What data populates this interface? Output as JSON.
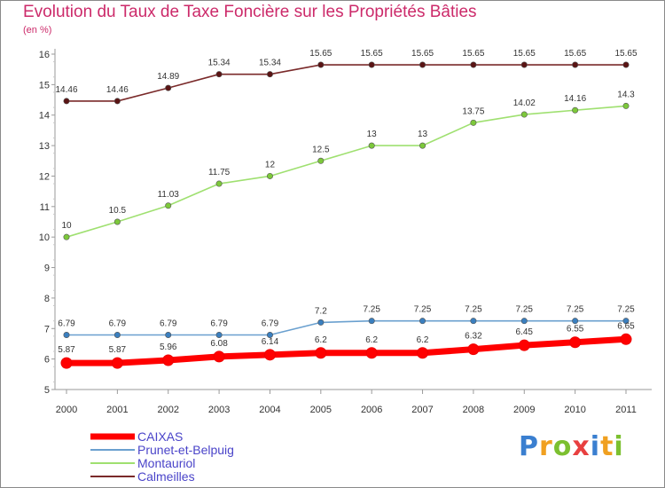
{
  "title": "Evolution du Taux de Taxe Foncière sur les Propriétés Bâties",
  "unit_label": "(en %)",
  "brand": {
    "letters": [
      {
        "char": "P",
        "color": "#3a7fd0"
      },
      {
        "char": "r",
        "color": "#f0a020"
      },
      {
        "char": "o",
        "color": "#7cc030"
      },
      {
        "char": "x",
        "color": "#e84040"
      },
      {
        "char": "i",
        "color": "#3a7fd0"
      },
      {
        "char": "t",
        "color": "#f0a020"
      },
      {
        "char": "i",
        "color": "#7cc030"
      }
    ]
  },
  "chart_data": {
    "type": "line",
    "title": "Evolution du Taux de Taxe Foncière sur les Propriétés Bâties",
    "ylabel": "(en %)",
    "xlabel": "",
    "x": [
      2000,
      2001,
      2002,
      2003,
      2004,
      2005,
      2006,
      2007,
      2008,
      2009,
      2010,
      2011
    ],
    "ylim": [
      5,
      16
    ],
    "yticks": [
      5,
      6,
      7,
      8,
      9,
      10,
      11,
      12,
      13,
      14,
      15,
      16
    ],
    "grid": false,
    "legend_position": "bottom-left",
    "series": [
      {
        "name": "CAIXAS",
        "color": "#ff0000",
        "marker_color": "#ff0000",
        "weight": "thick",
        "values": [
          5.87,
          5.87,
          5.96,
          6.08,
          6.14,
          6.2,
          6.2,
          6.2,
          6.32,
          6.45,
          6.55,
          6.65
        ],
        "labels": [
          "5.87",
          "5.87",
          "5.96",
          "6.08",
          "6.14",
          "6.2",
          "6.2",
          "6.2",
          "6.32",
          "6.45",
          "6.55",
          "6.65"
        ]
      },
      {
        "name": "Prunet-et-Belpuig",
        "color": "#6aa0cf",
        "marker_color": "#3a7fbf",
        "weight": "normal",
        "values": [
          6.79,
          6.79,
          6.79,
          6.79,
          6.79,
          7.2,
          7.25,
          7.25,
          7.25,
          7.25,
          7.25,
          7.25
        ],
        "labels": [
          "6.79",
          "6.79",
          "6.79",
          "6.79",
          "6.79",
          "7.2",
          "7.25",
          "7.25",
          "7.25",
          "7.25",
          "7.25",
          "7.25"
        ]
      },
      {
        "name": "Montauriol",
        "color": "#9fe070",
        "marker_color": "#7cc83a",
        "weight": "normal",
        "values": [
          10,
          10.5,
          11.03,
          11.75,
          12,
          12.5,
          13,
          13,
          13.75,
          14.02,
          14.16,
          14.3
        ],
        "labels": [
          "10",
          "10.5",
          "11.03",
          "11.75",
          "12",
          "12.5",
          "13",
          "13",
          "13.75",
          "14.02",
          "14.16",
          "14.3"
        ]
      },
      {
        "name": "Calmeilles",
        "color": "#7a2a2a",
        "marker_color": "#5a1414",
        "weight": "normal",
        "values": [
          14.46,
          14.46,
          14.89,
          15.34,
          15.34,
          15.65,
          15.65,
          15.65,
          15.65,
          15.65,
          15.65,
          15.65
        ],
        "labels": [
          "14.46",
          "14.46",
          "14.89",
          "15.34",
          "15.34",
          "15.65",
          "15.65",
          "15.65",
          "15.65",
          "15.65",
          "15.65",
          "15.65"
        ]
      }
    ]
  }
}
